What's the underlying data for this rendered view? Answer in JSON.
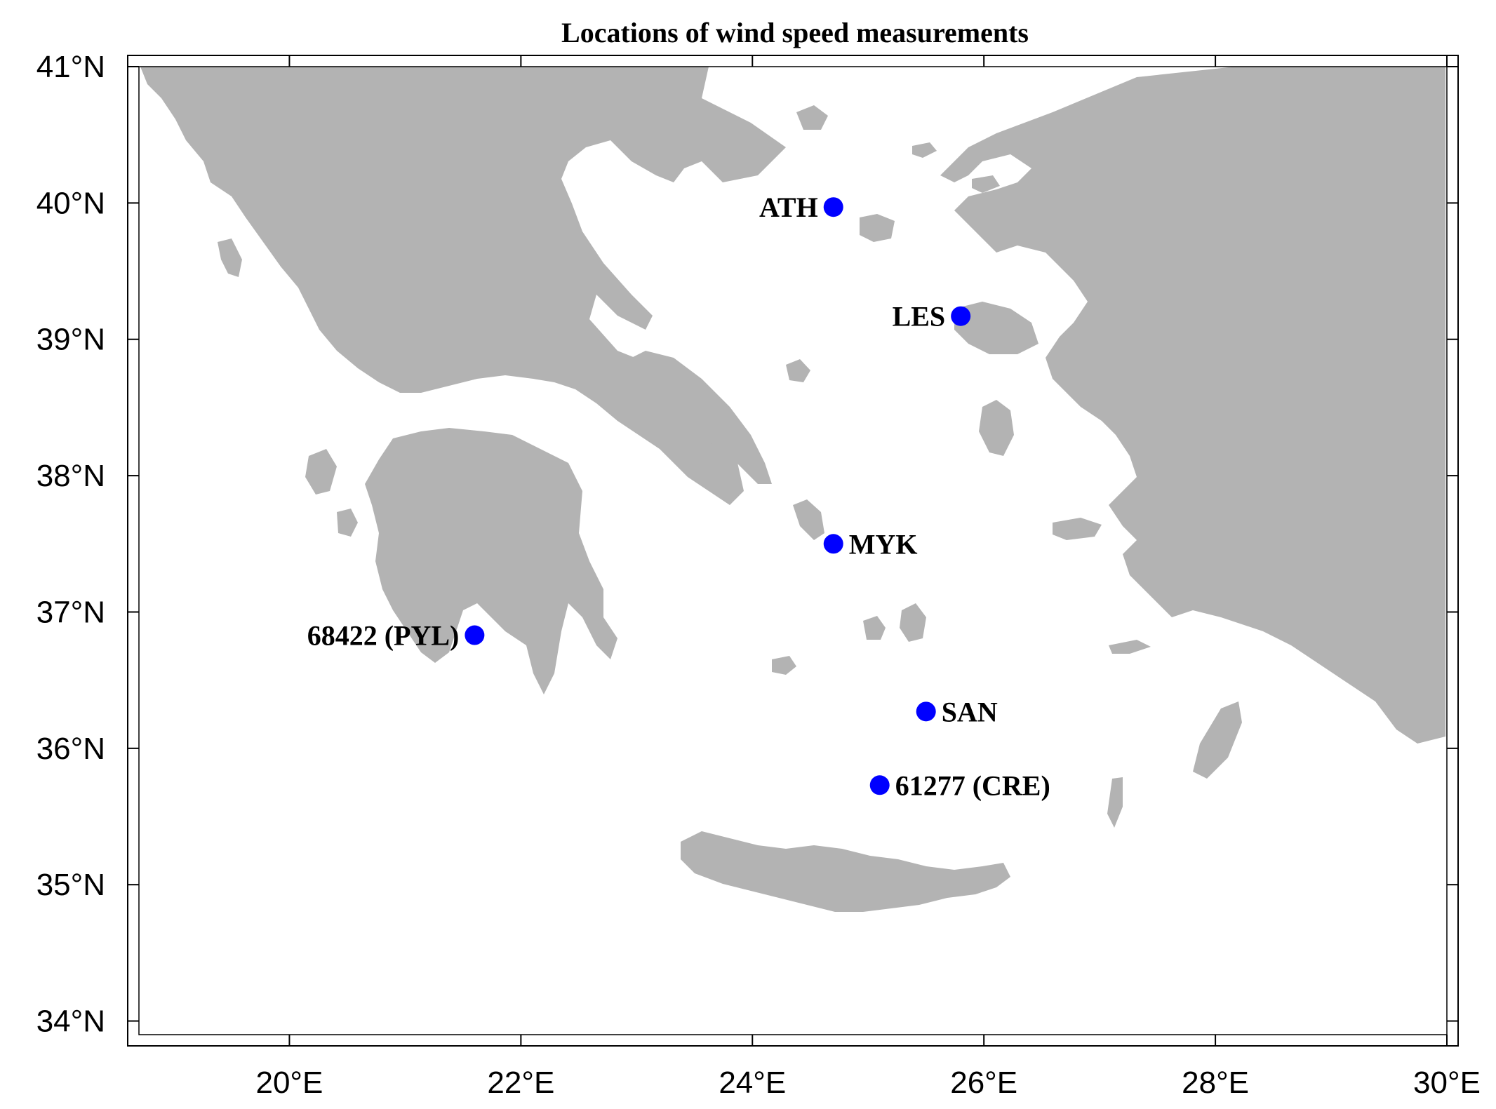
{
  "title": "Locations of wind speed measurements",
  "map": {
    "lon_range": [
      18.7,
      30.0
    ],
    "lat_range": [
      33.9,
      41.0
    ],
    "lon_ticks": [
      20,
      22,
      24,
      26,
      28,
      30
    ],
    "lat_ticks": [
      34,
      35,
      36,
      37,
      38,
      39,
      40,
      41
    ],
    "lon_tick_labels": [
      "20°E",
      "22°E",
      "24°E",
      "26°E",
      "28°E",
      "30°E"
    ],
    "lat_tick_labels": [
      "34°N",
      "35°N",
      "36°N",
      "37°N",
      "38°N",
      "39°N",
      "40°N",
      "41°N"
    ],
    "land_color": "#b3b3b3",
    "sea_color": "#ffffff",
    "marker_color": "#0000ff"
  },
  "stations": [
    {
      "label": "ATH",
      "lon": 24.7,
      "lat": 39.97,
      "label_side": "left"
    },
    {
      "label": "LES",
      "lon": 25.8,
      "lat": 39.17,
      "label_side": "left"
    },
    {
      "label": "MYK",
      "lon": 24.7,
      "lat": 37.5,
      "label_side": "right"
    },
    {
      "label": "68422 (PYL)",
      "lon": 21.6,
      "lat": 36.83,
      "label_side": "left"
    },
    {
      "label": "SAN",
      "lon": 25.5,
      "lat": 36.27,
      "label_side": "right"
    },
    {
      "label": "61277 (CRE)",
      "lon": 25.1,
      "lat": 35.73,
      "label_side": "right"
    }
  ]
}
